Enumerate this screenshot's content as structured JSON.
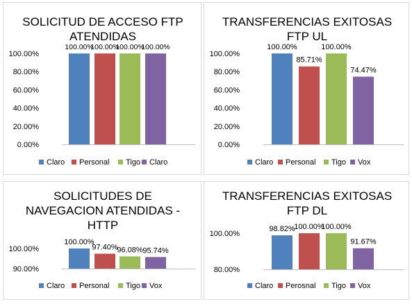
{
  "colors": {
    "series": [
      "#4f81bd",
      "#c0504d",
      "#9bbb59",
      "#8064a2"
    ],
    "axis": "#bfbfbf",
    "text": "#000000",
    "border": "#d9d9d9"
  },
  "chart_data": [
    {
      "type": "bar",
      "title_lines": [
        "SOLICITUD DE ACCESO FTP",
        "ATENDIDAS"
      ],
      "categories": [
        "Claro",
        "Personal",
        "Tigo",
        "Claro"
      ],
      "values": [
        100.0,
        100.0,
        100.0,
        100.0
      ],
      "data_labels": [
        "100.00%",
        "100.00%",
        "100.00%",
        "100.00%"
      ],
      "ylim": [
        0,
        100
      ],
      "yticks": [
        0,
        20,
        40,
        60,
        80,
        100
      ],
      "ytick_labels": [
        "0.00%",
        "20.00%",
        "40.00%",
        "60.00%",
        "80.00%",
        "100.00%"
      ],
      "legend": [
        "Claro",
        "Personal",
        "Tigo",
        "Claro"
      ],
      "legend_position": "bottom",
      "grid": false
    },
    {
      "type": "bar",
      "title_lines": [
        "TRANSFERENCIAS EXITOSAS",
        "FTP UL"
      ],
      "categories": [
        "Claro",
        "Personal",
        "Tigo",
        "Vox"
      ],
      "values": [
        100.0,
        85.71,
        100.0,
        74.47
      ],
      "data_labels": [
        "100.00%",
        "85.71%",
        "100.00%",
        "74.47%"
      ],
      "ylim": [
        0,
        100
      ],
      "yticks": [
        0,
        20,
        40,
        60,
        80,
        100
      ],
      "ytick_labels": [
        "0.00%",
        "20.00%",
        "40.00%",
        "60.00%",
        "80.00%",
        "100.00%"
      ],
      "legend": [
        "Claro",
        "Personal",
        "Tigo",
        "Vox"
      ],
      "legend_position": "bottom",
      "grid": false
    },
    {
      "type": "bar",
      "title_lines": [
        "SOLICITUDES DE",
        "NAVEGACION ATENDIDAS -",
        "HTTP"
      ],
      "categories": [
        "Claro",
        "Personal",
        "Tigo",
        "Vox"
      ],
      "values": [
        100.0,
        97.4,
        96.08,
        95.74
      ],
      "data_labels": [
        "100.00%",
        "97.40%",
        "96.08%",
        "95.74%"
      ],
      "ylim": [
        90,
        100
      ],
      "yticks": [
        90,
        100
      ],
      "ytick_labels": [
        "90.00%",
        "100.00%"
      ],
      "legend": [
        "Claro",
        "Personal",
        "Tigo",
        "Vox"
      ],
      "legend_position": "bottom",
      "grid": false
    },
    {
      "type": "bar",
      "title_lines": [
        "TRANSFERENCIAS EXITOSAS",
        "FTP DL"
      ],
      "categories": [
        "Claro",
        "Perosnal",
        "Tigo",
        "Vox"
      ],
      "values": [
        98.82,
        100.0,
        100.0,
        91.67
      ],
      "data_labels": [
        "98.82%",
        "100.00%",
        "100.00%",
        "91.67%"
      ],
      "ylim": [
        80,
        100
      ],
      "yticks": [
        80,
        100
      ],
      "ytick_labels": [
        "80.00%",
        "100.00%"
      ],
      "legend": [
        "Claro",
        "Perosnal",
        "Tigo",
        "Vox"
      ],
      "legend_position": "bottom",
      "grid": false
    }
  ]
}
